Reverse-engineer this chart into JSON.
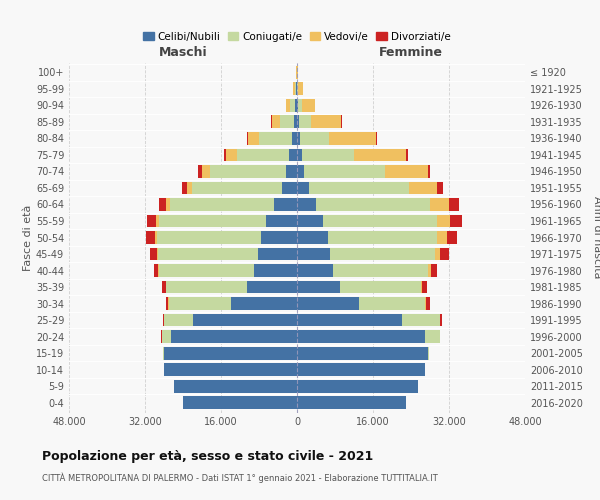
{
  "age_groups": [
    "100+",
    "95-99",
    "90-94",
    "85-89",
    "80-84",
    "75-79",
    "70-74",
    "65-69",
    "60-64",
    "55-59",
    "50-54",
    "45-49",
    "40-44",
    "35-39",
    "30-34",
    "25-29",
    "20-24",
    "15-19",
    "10-14",
    "5-9",
    "0-4"
  ],
  "birth_years": [
    "≤ 1920",
    "1921-1925",
    "1926-1930",
    "1931-1935",
    "1936-1940",
    "1941-1945",
    "1946-1950",
    "1951-1955",
    "1956-1960",
    "1961-1965",
    "1966-1970",
    "1971-1975",
    "1976-1980",
    "1981-1985",
    "1986-1990",
    "1991-1995",
    "1996-2000",
    "2001-2005",
    "2006-2010",
    "2011-2015",
    "2016-2020"
  ],
  "colors": {
    "celibe": "#4472a4",
    "coniugato": "#c5d9a0",
    "vedovo": "#f0c060",
    "divorziato": "#cc2222"
  },
  "maschi": {
    "celibe": [
      30,
      120,
      350,
      600,
      1100,
      1700,
      2300,
      3200,
      4800,
      6500,
      7500,
      8200,
      9000,
      10500,
      14000,
      22000,
      26500,
      28000,
      28000,
      26000,
      24000
    ],
    "coniugato": [
      50,
      300,
      1100,
      3000,
      7000,
      11000,
      16000,
      19000,
      22000,
      22500,
      22000,
      21000,
      20000,
      17000,
      13000,
      6000,
      2000,
      200,
      0,
      0,
      0
    ],
    "vedovo": [
      80,
      350,
      900,
      1700,
      2300,
      2300,
      1800,
      900,
      700,
      600,
      500,
      350,
      250,
      150,
      80,
      20,
      0,
      0,
      0,
      0,
      0
    ],
    "divorziato": [
      5,
      10,
      30,
      80,
      180,
      450,
      700,
      1100,
      1600,
      1900,
      1700,
      1400,
      900,
      700,
      500,
      250,
      80,
      0,
      0,
      0,
      0
    ]
  },
  "femmine": {
    "nubile": [
      20,
      60,
      150,
      350,
      700,
      1000,
      1500,
      2500,
      4000,
      5500,
      6500,
      7000,
      7500,
      9000,
      13000,
      22000,
      27000,
      27500,
      27000,
      25500,
      23000
    ],
    "coniugata": [
      30,
      200,
      800,
      2500,
      6000,
      11000,
      17000,
      21000,
      24000,
      24000,
      23000,
      22000,
      20000,
      17000,
      14000,
      8000,
      3000,
      300,
      0,
      0,
      0
    ],
    "vedova": [
      200,
      900,
      2800,
      6500,
      10000,
      11000,
      9000,
      6000,
      4000,
      2800,
      2000,
      1200,
      700,
      400,
      200,
      100,
      0,
      0,
      0,
      0,
      0
    ],
    "divorziata": [
      2,
      5,
      15,
      40,
      100,
      300,
      600,
      1200,
      2000,
      2500,
      2200,
      1800,
      1300,
      1000,
      800,
      400,
      100,
      0,
      0,
      0,
      0
    ]
  },
  "xlim": 48000,
  "title": "Popolazione per età, sesso e stato civile - 2021",
  "subtitle": "CITTÀ METROPOLITANA DI PALERMO - Dati ISTAT 1° gennaio 2021 - Elaborazione TUTTITALIA.IT",
  "xlabel_left": "Maschi",
  "xlabel_right": "Femmine",
  "ylabel_left": "Fasce di età",
  "ylabel_right": "Anni di nascita",
  "xtick_labels": [
    "48.000",
    "32.000",
    "16.000",
    "0",
    "16.000",
    "32.000",
    "48.000"
  ],
  "legend_labels": [
    "Celibi/Nubili",
    "Coniugati/e",
    "Vedovi/e",
    "Divorziati/e"
  ],
  "legend_colors": [
    "#4472a4",
    "#c5d9a0",
    "#f0c060",
    "#cc2222"
  ],
  "background_color": "#f8f8f8"
}
